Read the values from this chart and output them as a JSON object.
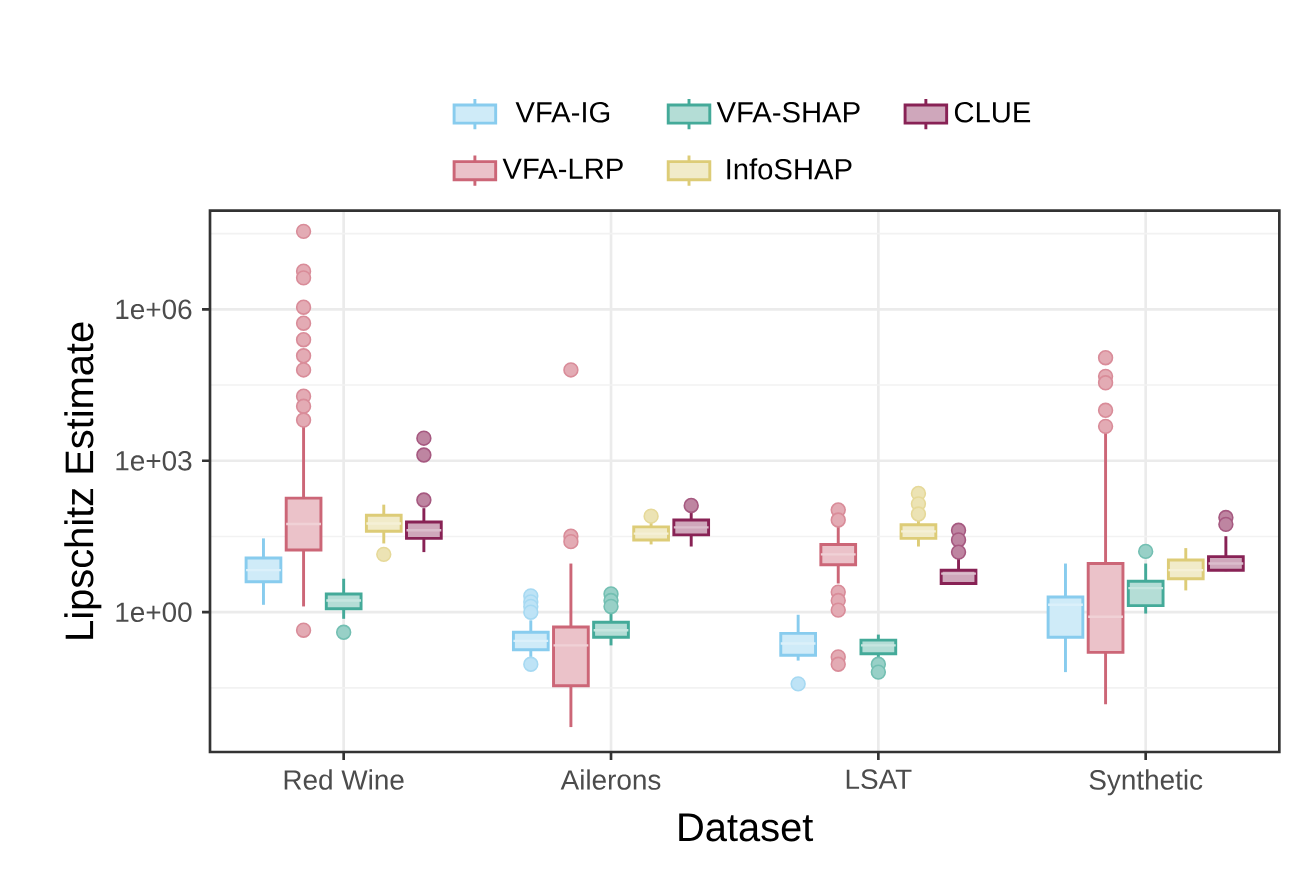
{
  "chart_data": {
    "type": "box",
    "xlabel": "Dataset",
    "ylabel": "Lipschitz Estimate",
    "categories": [
      "Red Wine",
      "Ailerons",
      "LSAT",
      "Synthetic"
    ],
    "log": true,
    "grid": true,
    "legend": "top",
    "marker": "circle",
    "ylim": [
      0.0017,
      90000000
    ],
    "yticks": [
      {
        "value": 1,
        "label": "1e+00"
      },
      {
        "value": 1000,
        "label": "1e+03"
      },
      {
        "value": 1000000,
        "label": "1e+06"
      }
    ],
    "series": [
      {
        "name": "VFA-IG",
        "color": "#88ccee",
        "boxes": [
          {
            "low": 1.4,
            "q1": 4,
            "median": 6.8,
            "q3": 11.8,
            "high": 29
          },
          {
            "low": 0.13,
            "q1": 0.18,
            "median": 0.27,
            "q3": 0.4,
            "high": 0.69,
            "outliers": [
              2.1,
              1.6,
              1.3,
              1,
              0.093
            ]
          },
          {
            "low": 0.11,
            "q1": 0.14,
            "median": 0.24,
            "q3": 0.38,
            "high": 0.89,
            "outliers": [
              0.038
            ]
          },
          {
            "low": 0.065,
            "q1": 0.32,
            "median": 1.4,
            "q3": 2,
            "high": 9.2
          }
        ]
      },
      {
        "name": "VFA-LRP",
        "color": "#cc6677",
        "boxes": [
          {
            "low": 1.3,
            "q1": 17,
            "median": 56,
            "q3": 182,
            "high": 4800,
            "outliers": [
              35000000,
              5700000,
              4200000,
              1100000,
              530000,
              250000,
              120000,
              63000,
              19000,
              12000,
              6400,
              0.44
            ]
          },
          {
            "low": 0.0053,
            "q1": 0.035,
            "median": 0.22,
            "q3": 0.51,
            "high": 9.2,
            "outliers": [
              63000,
              32,
              25
            ]
          },
          {
            "low": 3.7,
            "q1": 8.7,
            "median": 14,
            "q3": 22,
            "high": 49,
            "outliers": [
              106,
              67,
              2.5,
              1.7,
              1.1,
              0.13,
              0.093
            ]
          },
          {
            "low": 0.015,
            "q1": 0.16,
            "median": 0.81,
            "q3": 9.2,
            "high": 4100,
            "outliers": [
              110000,
              47000,
              35000,
              10000,
              4800
            ]
          }
        ]
      },
      {
        "name": "VFA-SHAP",
        "color": "#44aa99",
        "boxes": [
          {
            "low": 0.74,
            "q1": 1.17,
            "median": 1.7,
            "q3": 2.3,
            "high": 4.6,
            "outliers": [
              0.4
            ]
          },
          {
            "low": 0.22,
            "q1": 0.32,
            "median": 0.44,
            "q3": 0.63,
            "high": 1.1,
            "outliers": [
              2.3,
              1.7,
              1.3
            ]
          },
          {
            "low": 0.12,
            "q1": 0.15,
            "median": 0.22,
            "q3": 0.28,
            "high": 0.36,
            "outliers": [
              0.093,
              0.065
            ]
          },
          {
            "low": 0.94,
            "q1": 1.35,
            "median": 3,
            "q3": 4.1,
            "high": 9.2,
            "outliers": [
              16
            ]
          }
        ]
      },
      {
        "name": "InfoSHAP",
        "color": "#ddcc77",
        "boxes": [
          {
            "low": 23,
            "q1": 40,
            "median": 57,
            "q3": 83,
            "high": 135,
            "outliers": [
              14
            ]
          },
          {
            "low": 22,
            "q1": 27,
            "median": 36,
            "q3": 49,
            "high": 67,
            "outliers": [
              80
            ]
          },
          {
            "low": 20,
            "q1": 29,
            "median": 40,
            "q3": 54,
            "high": 67,
            "outliers": [
              225,
              140,
              88
            ]
          },
          {
            "low": 2.7,
            "q1": 4.6,
            "median": 6.8,
            "q3": 10.8,
            "high": 18.6
          }
        ]
      },
      {
        "name": "CLUE",
        "color": "#882255",
        "boxes": [
          {
            "low": 15.5,
            "q1": 29,
            "median": 42,
            "q3": 61,
            "high": 115,
            "outliers": [
              2800,
              1300,
              167
            ]
          },
          {
            "low": 20,
            "q1": 34,
            "median": 48,
            "q3": 67,
            "high": 100,
            "outliers": [
              130
            ]
          },
          {
            "low": 3.5,
            "q1": 3.7,
            "median": 5.8,
            "q3": 6.8,
            "high": 20,
            "outliers": [
              42,
              27,
              15.5
            ]
          },
          {
            "low": 6.5,
            "q1": 6.8,
            "median": 9.2,
            "q3": 12.6,
            "high": 32,
            "outliers": [
              75,
              55
            ]
          }
        ]
      }
    ]
  }
}
